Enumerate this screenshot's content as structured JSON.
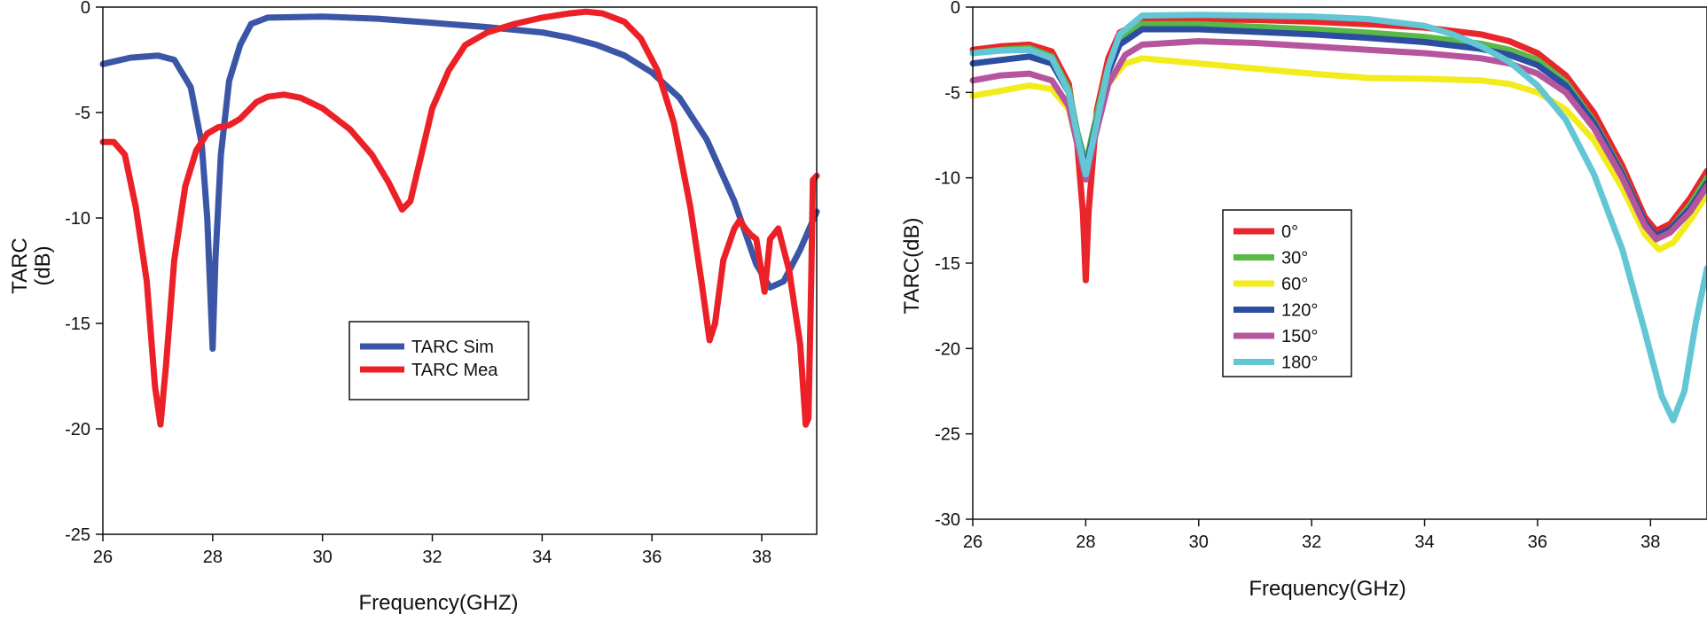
{
  "chart_data": [
    {
      "type": "line",
      "title": "",
      "xlabel": "Frequency(GHZ)",
      "ylabel": "TARC\n(dB)",
      "xlim": [
        26,
        39
      ],
      "ylim": [
        -25,
        0
      ],
      "xticks": [
        26,
        28,
        30,
        32,
        34,
        36,
        38
      ],
      "yticks": [
        0,
        -5,
        -10,
        -15,
        -20,
        -25
      ],
      "grid": false,
      "legend_position": "center",
      "series": [
        {
          "name": "TARC Sim",
          "color": "#3b56a6",
          "points": [
            [
              26,
              -2.7
            ],
            [
              26.5,
              -2.4
            ],
            [
              27,
              -2.3
            ],
            [
              27.3,
              -2.5
            ],
            [
              27.6,
              -3.8
            ],
            [
              27.8,
              -6.5
            ],
            [
              27.9,
              -10
            ],
            [
              28,
              -16.2
            ],
            [
              28.05,
              -12
            ],
            [
              28.15,
              -7
            ],
            [
              28.3,
              -3.5
            ],
            [
              28.5,
              -1.8
            ],
            [
              28.7,
              -0.8
            ],
            [
              29,
              -0.5
            ],
            [
              30,
              -0.45
            ],
            [
              31,
              -0.55
            ],
            [
              32,
              -0.75
            ],
            [
              33,
              -0.95
            ],
            [
              34,
              -1.2
            ],
            [
              34.5,
              -1.45
            ],
            [
              35,
              -1.8
            ],
            [
              35.5,
              -2.3
            ],
            [
              36,
              -3.1
            ],
            [
              36.5,
              -4.3
            ],
            [
              37,
              -6.3
            ],
            [
              37.5,
              -9.2
            ],
            [
              37.9,
              -12.2
            ],
            [
              38.15,
              -13.3
            ],
            [
              38.4,
              -13
            ],
            [
              38.7,
              -11.5
            ],
            [
              39,
              -9.7
            ]
          ]
        },
        {
          "name": "TARC Mea",
          "color": "#ec2128",
          "points": [
            [
              26,
              -6.4
            ],
            [
              26.2,
              -6.4
            ],
            [
              26.4,
              -7
            ],
            [
              26.6,
              -9.5
            ],
            [
              26.8,
              -13
            ],
            [
              26.95,
              -18
            ],
            [
              27.05,
              -19.8
            ],
            [
              27.15,
              -17
            ],
            [
              27.3,
              -12
            ],
            [
              27.5,
              -8.5
            ],
            [
              27.7,
              -6.8
            ],
            [
              27.9,
              -6
            ],
            [
              28.1,
              -5.7
            ],
            [
              28.3,
              -5.6
            ],
            [
              28.5,
              -5.3
            ],
            [
              28.8,
              -4.5
            ],
            [
              29,
              -4.25
            ],
            [
              29.3,
              -4.15
            ],
            [
              29.6,
              -4.3
            ],
            [
              30,
              -4.8
            ],
            [
              30.5,
              -5.8
            ],
            [
              30.9,
              -7
            ],
            [
              31.2,
              -8.3
            ],
            [
              31.45,
              -9.6
            ],
            [
              31.6,
              -9.2
            ],
            [
              31.8,
              -7
            ],
            [
              32,
              -4.8
            ],
            [
              32.3,
              -3
            ],
            [
              32.6,
              -1.8
            ],
            [
              33,
              -1.2
            ],
            [
              33.5,
              -0.8
            ],
            [
              34,
              -0.5
            ],
            [
              34.5,
              -0.3
            ],
            [
              34.8,
              -0.22
            ],
            [
              35.1,
              -0.3
            ],
            [
              35.5,
              -0.7
            ],
            [
              35.8,
              -1.5
            ],
            [
              36.1,
              -3
            ],
            [
              36.4,
              -5.5
            ],
            [
              36.7,
              -9.5
            ],
            [
              36.9,
              -13
            ],
            [
              37.05,
              -15.8
            ],
            [
              37.15,
              -15
            ],
            [
              37.3,
              -12
            ],
            [
              37.5,
              -10.5
            ],
            [
              37.6,
              -10.1
            ],
            [
              37.7,
              -10.5
            ],
            [
              37.8,
              -10.8
            ],
            [
              37.9,
              -11
            ],
            [
              38.05,
              -13.5
            ],
            [
              38.15,
              -11
            ],
            [
              38.3,
              -10.5
            ],
            [
              38.5,
              -12.5
            ],
            [
              38.7,
              -16
            ],
            [
              38.8,
              -19.8
            ],
            [
              38.85,
              -19.5
            ],
            [
              38.9,
              -13
            ],
            [
              38.93,
              -8.2
            ],
            [
              39,
              -8
            ]
          ]
        }
      ]
    },
    {
      "type": "line",
      "title": "",
      "xlabel": "Frequency(GHz)",
      "ylabel": "TARC(dB)",
      "xlim": [
        26,
        39
      ],
      "ylim": [
        -30,
        0
      ],
      "xticks": [
        26,
        28,
        30,
        32,
        34,
        36,
        38
      ],
      "yticks": [
        0,
        -5,
        -10,
        -15,
        -20,
        -25,
        -30
      ],
      "grid": false,
      "legend_position": "center-left",
      "series": [
        {
          "name": "0°",
          "color": "#e8262b",
          "points": [
            [
              26,
              -2.5
            ],
            [
              26.5,
              -2.3
            ],
            [
              27,
              -2.2
            ],
            [
              27.4,
              -2.6
            ],
            [
              27.7,
              -4.5
            ],
            [
              27.85,
              -8
            ],
            [
              27.95,
              -12
            ],
            [
              28,
              -16
            ],
            [
              28.05,
              -12
            ],
            [
              28.2,
              -6
            ],
            [
              28.4,
              -3
            ],
            [
              28.6,
              -1.5
            ],
            [
              29,
              -0.8
            ],
            [
              30,
              -0.7
            ],
            [
              31,
              -0.75
            ],
            [
              32,
              -0.85
            ],
            [
              33,
              -1.0
            ],
            [
              34,
              -1.2
            ],
            [
              35,
              -1.6
            ],
            [
              35.5,
              -2.0
            ],
            [
              36,
              -2.7
            ],
            [
              36.5,
              -4.0
            ],
            [
              37,
              -6.2
            ],
            [
              37.5,
              -9.3
            ],
            [
              37.9,
              -12.3
            ],
            [
              38.1,
              -13.1
            ],
            [
              38.35,
              -12.7
            ],
            [
              38.7,
              -11.2
            ],
            [
              39,
              -9.6
            ]
          ]
        },
        {
          "name": "30°",
          "color": "#58b947",
          "points": [
            [
              26,
              -2.7
            ],
            [
              26.5,
              -2.5
            ],
            [
              27,
              -2.4
            ],
            [
              27.4,
              -2.9
            ],
            [
              27.7,
              -4.8
            ],
            [
              27.85,
              -7.3
            ],
            [
              28,
              -9.2
            ],
            [
              28.15,
              -7
            ],
            [
              28.4,
              -3.5
            ],
            [
              28.6,
              -1.8
            ],
            [
              29,
              -1.0
            ],
            [
              30,
              -1.0
            ],
            [
              31,
              -1.15
            ],
            [
              32,
              -1.3
            ],
            [
              33,
              -1.5
            ],
            [
              34,
              -1.75
            ],
            [
              35,
              -2.15
            ],
            [
              35.5,
              -2.5
            ],
            [
              36,
              -3.1
            ],
            [
              36.5,
              -4.4
            ],
            [
              37,
              -6.7
            ],
            [
              37.5,
              -9.7
            ],
            [
              37.9,
              -12.6
            ],
            [
              38.1,
              -13.4
            ],
            [
              38.35,
              -13.0
            ],
            [
              38.7,
              -11.6
            ],
            [
              39,
              -10.0
            ]
          ]
        },
        {
          "name": "60°",
          "color": "#f2ec1d",
          "points": [
            [
              26,
              -5.2
            ],
            [
              26.5,
              -4.9
            ],
            [
              27,
              -4.6
            ],
            [
              27.4,
              -4.8
            ],
            [
              27.7,
              -6
            ],
            [
              27.85,
              -8
            ],
            [
              28,
              -9.8
            ],
            [
              28.15,
              -7.5
            ],
            [
              28.4,
              -4.5
            ],
            [
              28.7,
              -3.3
            ],
            [
              29,
              -3.0
            ],
            [
              30,
              -3.3
            ],
            [
              31,
              -3.6
            ],
            [
              32,
              -3.9
            ],
            [
              33,
              -4.15
            ],
            [
              34,
              -4.2
            ],
            [
              35,
              -4.3
            ],
            [
              35.5,
              -4.5
            ],
            [
              36,
              -5.0
            ],
            [
              36.5,
              -6.0
            ],
            [
              37,
              -7.8
            ],
            [
              37.5,
              -10.6
            ],
            [
              37.9,
              -13.3
            ],
            [
              38.15,
              -14.2
            ],
            [
              38.4,
              -13.8
            ],
            [
              38.7,
              -12.5
            ],
            [
              39,
              -11.0
            ]
          ]
        },
        {
          "name": "120°",
          "color": "#2d4e9e",
          "points": [
            [
              26,
              -3.3
            ],
            [
              26.5,
              -3.1
            ],
            [
              27,
              -2.9
            ],
            [
              27.4,
              -3.3
            ],
            [
              27.7,
              -5
            ],
            [
              27.85,
              -7.5
            ],
            [
              28,
              -9.5
            ],
            [
              28.15,
              -7.3
            ],
            [
              28.4,
              -3.8
            ],
            [
              28.6,
              -2.2
            ],
            [
              29,
              -1.3
            ],
            [
              30,
              -1.3
            ],
            [
              31,
              -1.45
            ],
            [
              32,
              -1.6
            ],
            [
              33,
              -1.8
            ],
            [
              34,
              -2.05
            ],
            [
              35,
              -2.45
            ],
            [
              35.5,
              -2.8
            ],
            [
              36,
              -3.4
            ],
            [
              36.5,
              -4.6
            ],
            [
              37,
              -6.8
            ],
            [
              37.5,
              -9.8
            ],
            [
              37.9,
              -12.6
            ],
            [
              38.1,
              -13.4
            ],
            [
              38.35,
              -13.0
            ],
            [
              38.7,
              -11.8
            ],
            [
              39,
              -10.3
            ]
          ]
        },
        {
          "name": "150°",
          "color": "#b6559e",
          "points": [
            [
              26,
              -4.3
            ],
            [
              26.5,
              -4.0
            ],
            [
              27,
              -3.9
            ],
            [
              27.4,
              -4.3
            ],
            [
              27.7,
              -5.8
            ],
            [
              27.85,
              -8
            ],
            [
              28,
              -10.1
            ],
            [
              28.15,
              -7.8
            ],
            [
              28.4,
              -4.5
            ],
            [
              28.7,
              -2.8
            ],
            [
              29,
              -2.2
            ],
            [
              30,
              -2.0
            ],
            [
              31,
              -2.1
            ],
            [
              32,
              -2.3
            ],
            [
              33,
              -2.5
            ],
            [
              34,
              -2.7
            ],
            [
              35,
              -3.0
            ],
            [
              35.5,
              -3.3
            ],
            [
              36,
              -3.9
            ],
            [
              36.5,
              -5.0
            ],
            [
              37,
              -7.1
            ],
            [
              37.5,
              -10.0
            ],
            [
              37.9,
              -12.8
            ],
            [
              38.1,
              -13.6
            ],
            [
              38.35,
              -13.2
            ],
            [
              38.7,
              -12.0
            ],
            [
              39,
              -10.5
            ]
          ]
        },
        {
          "name": "180°",
          "color": "#62c6d4",
          "points": [
            [
              26,
              -2.7
            ],
            [
              26.5,
              -2.55
            ],
            [
              27,
              -2.5
            ],
            [
              27.4,
              -3.0
            ],
            [
              27.7,
              -5.0
            ],
            [
              27.85,
              -7.5
            ],
            [
              28,
              -9.8
            ],
            [
              28.15,
              -7.5
            ],
            [
              28.4,
              -3.5
            ],
            [
              28.6,
              -1.6
            ],
            [
              29,
              -0.5
            ],
            [
              30,
              -0.45
            ],
            [
              31,
              -0.5
            ],
            [
              32,
              -0.55
            ],
            [
              33,
              -0.7
            ],
            [
              34,
              -1.1
            ],
            [
              34.5,
              -1.6
            ],
            [
              35,
              -2.3
            ],
            [
              35.5,
              -3.2
            ],
            [
              36,
              -4.6
            ],
            [
              36.5,
              -6.6
            ],
            [
              37,
              -9.8
            ],
            [
              37.5,
              -14.2
            ],
            [
              37.9,
              -19.0
            ],
            [
              38.2,
              -22.8
            ],
            [
              38.4,
              -24.2
            ],
            [
              38.6,
              -22.5
            ],
            [
              38.8,
              -18.5
            ],
            [
              39,
              -15.3
            ]
          ]
        }
      ]
    }
  ]
}
